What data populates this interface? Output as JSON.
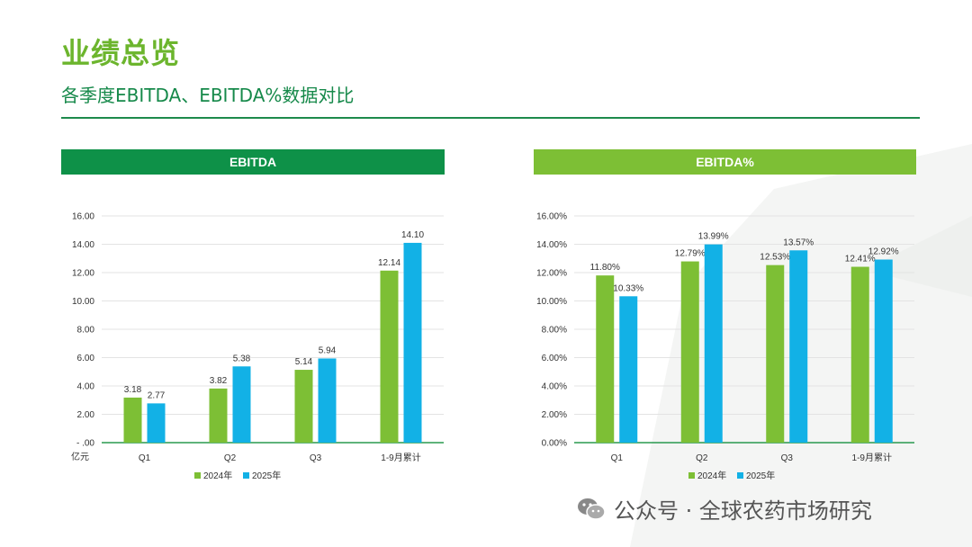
{
  "header": {
    "title": "业绩总览",
    "subtitle": "各季度EBITDA、EBITDA%数据对比"
  },
  "colors": {
    "series_2024": "#7dbf35",
    "series_2025": "#12b1e6",
    "title_green": "#6cb52d",
    "header_dark_green": "#0e9148",
    "header_light_green": "#7dbf35"
  },
  "panels": {
    "left_header": "EBITDA",
    "right_header": "EBITDA%"
  },
  "watermark": {
    "text": "公众号 · 全球农药市场研究",
    "icon": "wechat-icon"
  },
  "chart_data": [
    {
      "type": "bar",
      "title": "EBITDA",
      "unit_label": "亿元",
      "categories": [
        "Q1",
        "Q2",
        "Q3",
        "1-9月累计"
      ],
      "series": [
        {
          "name": "2024年",
          "values": [
            3.18,
            3.82,
            5.14,
            12.14
          ],
          "labels": [
            "3.18",
            "3.82",
            "5.14",
            "12.14"
          ]
        },
        {
          "name": "2025年",
          "values": [
            2.77,
            5.38,
            5.94,
            14.1
          ],
          "labels": [
            "2.77",
            "5.38",
            "5.94",
            "14.10"
          ]
        }
      ],
      "ylim": [
        0,
        16
      ],
      "yticks": [
        0,
        2,
        4,
        6,
        8,
        10,
        12,
        14,
        16
      ],
      "ytick_labels": [
        "- .00",
        "2.00",
        "4.00",
        "6.00",
        "8.00",
        "10.00",
        "12.00",
        "14.00",
        "16.00"
      ],
      "grid": true,
      "legend": "bottom"
    },
    {
      "type": "bar",
      "title": "EBITDA%",
      "categories": [
        "Q1",
        "Q2",
        "Q3",
        "1-9月累计"
      ],
      "series": [
        {
          "name": "2024年",
          "values": [
            11.8,
            12.79,
            12.53,
            12.41
          ],
          "labels": [
            "11.80%",
            "12.79%",
            "12.53%",
            "12.41%"
          ]
        },
        {
          "name": "2025年",
          "values": [
            10.33,
            13.99,
            13.57,
            12.92
          ],
          "labels": [
            "10.33%",
            "13.99%",
            "13.57%",
            "12.92%"
          ]
        }
      ],
      "ylim": [
        0,
        16
      ],
      "yticks": [
        0,
        2,
        4,
        6,
        8,
        10,
        12,
        14,
        16
      ],
      "ytick_labels": [
        "0.00%",
        "2.00%",
        "4.00%",
        "6.00%",
        "8.00%",
        "10.00%",
        "12.00%",
        "14.00%",
        "16.00%"
      ],
      "grid": true,
      "legend": "bottom"
    }
  ]
}
